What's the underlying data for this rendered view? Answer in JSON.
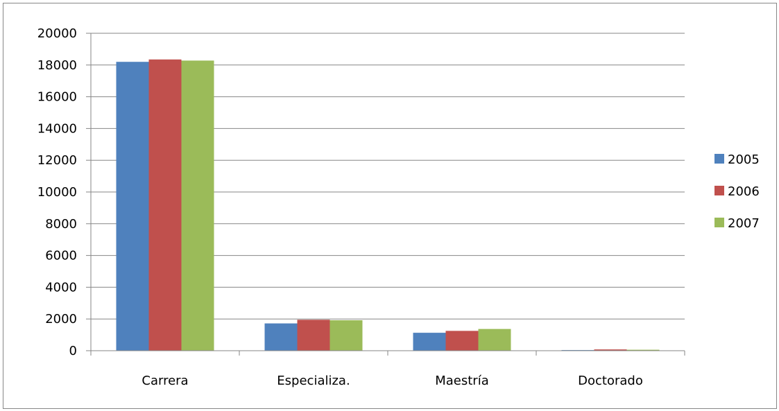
{
  "chart_data": {
    "type": "bar",
    "categories": [
      "Carrera",
      "Especializa.",
      "Maestría",
      "Doctorado"
    ],
    "series": [
      {
        "name": "2005",
        "values": [
          18200,
          1720,
          1130,
          40
        ],
        "color": "#4F81BD"
      },
      {
        "name": "2006",
        "values": [
          18350,
          1950,
          1250,
          80
        ],
        "color": "#C0504D"
      },
      {
        "name": "2007",
        "values": [
          18280,
          1920,
          1370,
          60
        ],
        "color": "#9BBB59"
      }
    ],
    "yticks": [
      "0",
      "2000",
      "4000",
      "6000",
      "8000",
      "10000",
      "12000",
      "14000",
      "16000",
      "18000",
      "20000"
    ],
    "ylim": [
      0,
      20000
    ],
    "title": "",
    "xlabel": "",
    "ylabel": "",
    "grid": true,
    "legend_position": "right"
  }
}
